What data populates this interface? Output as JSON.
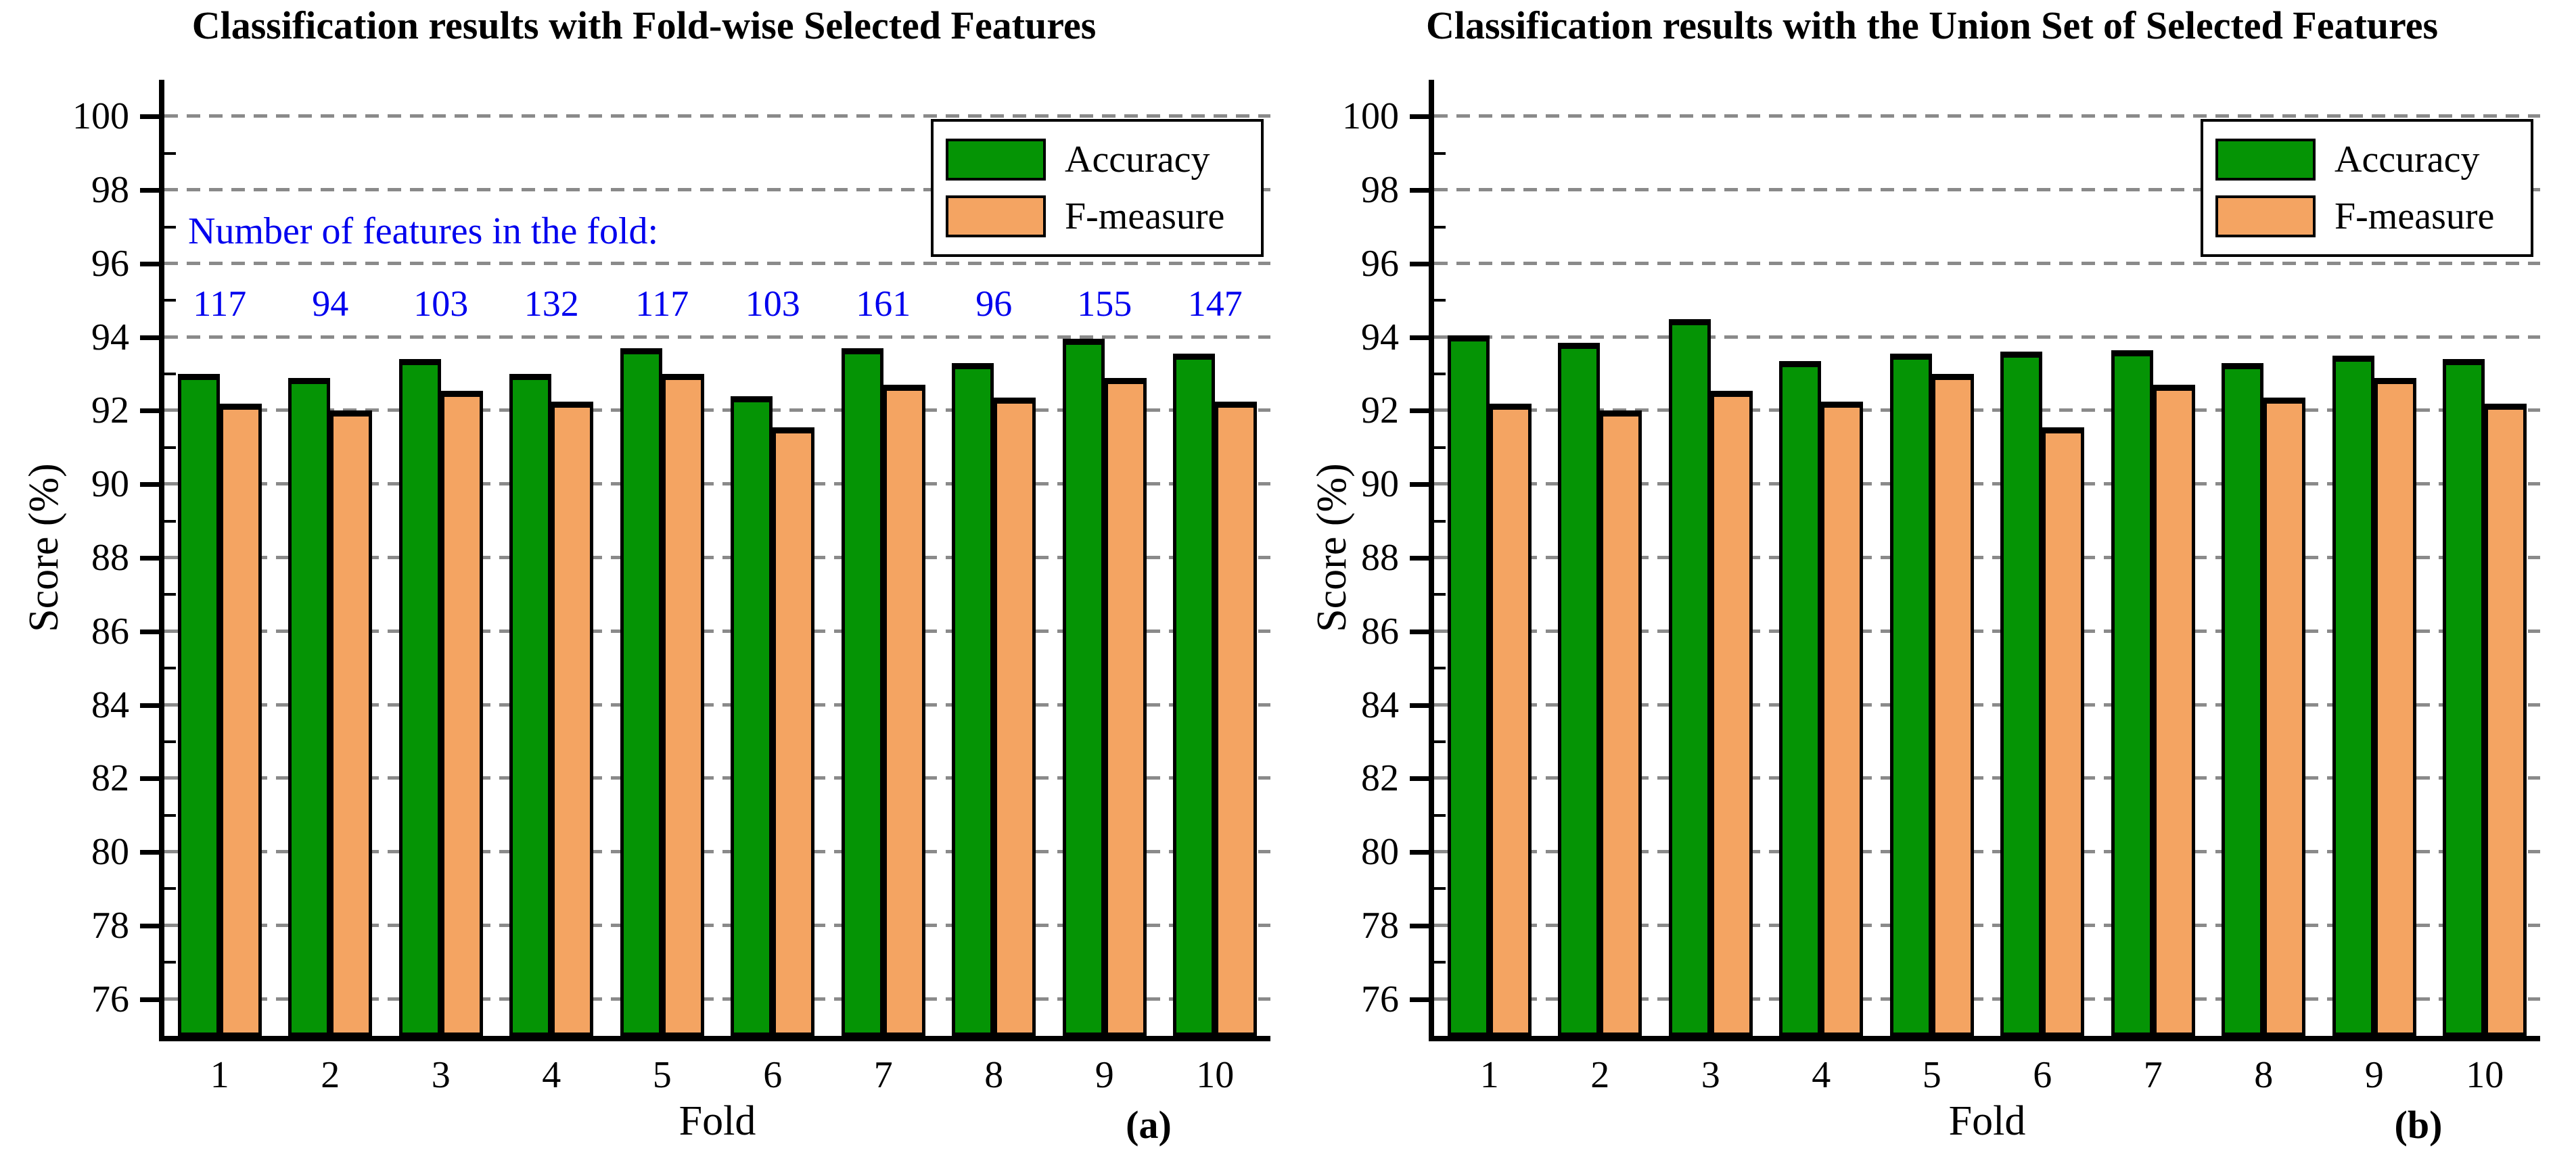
{
  "chart_data": [
    {
      "type": "bar",
      "title": "Classification results with Fold-wise Selected Features",
      "xlabel": "Fold",
      "ylabel": "Score (%)",
      "panel_label": "(a)",
      "categories": [
        "1",
        "2",
        "3",
        "4",
        "5",
        "6",
        "7",
        "8",
        "9",
        "10"
      ],
      "series": [
        {
          "name": "Accuracy",
          "color": "#059405",
          "values": [
            93.0,
            92.9,
            93.4,
            93.0,
            93.7,
            92.4,
            93.7,
            93.3,
            93.95,
            93.55
          ]
        },
        {
          "name": "F-measure",
          "color": "#F4A462",
          "values": [
            92.2,
            92.0,
            92.55,
            92.25,
            93.0,
            91.55,
            92.7,
            92.35,
            92.9,
            92.25
          ]
        }
      ],
      "ylim": [
        75,
        101
      ],
      "yticks": [
        76,
        78,
        80,
        82,
        84,
        86,
        88,
        90,
        92,
        94,
        96,
        98,
        100
      ],
      "grid": "horizontal-dashed",
      "legend_position": "top-right",
      "annotation": {
        "label": "Number of features in the fold:",
        "values": [
          117,
          94,
          103,
          132,
          117,
          103,
          161,
          96,
          155,
          147
        ],
        "color": "#0000EE"
      }
    },
    {
      "type": "bar",
      "title": "Classification results with the Union Set of Selected Features",
      "xlabel": "Fold",
      "ylabel": "Score (%)",
      "panel_label": "(b)",
      "categories": [
        "1",
        "2",
        "3",
        "4",
        "5",
        "6",
        "7",
        "8",
        "9",
        "10"
      ],
      "series": [
        {
          "name": "Accuracy",
          "color": "#059405",
          "values": [
            94.05,
            93.85,
            94.5,
            93.35,
            93.55,
            93.6,
            93.65,
            93.3,
            93.5,
            93.4
          ]
        },
        {
          "name": "F-measure",
          "color": "#F4A462",
          "values": [
            92.2,
            92.0,
            92.55,
            92.25,
            93.0,
            91.55,
            92.7,
            92.35,
            92.9,
            92.2
          ]
        }
      ],
      "ylim": [
        75,
        101
      ],
      "yticks": [
        76,
        78,
        80,
        82,
        84,
        86,
        88,
        90,
        92,
        94,
        96,
        98,
        100
      ],
      "grid": "horizontal-dashed",
      "legend_position": "top-right"
    }
  ],
  "colors": {
    "accuracy_green": "#059405",
    "fmeasure_orange": "#F4A462",
    "annotation_blue": "#0000EE",
    "gridline_gray": "#8a8a8a",
    "axis_black": "#000000"
  }
}
